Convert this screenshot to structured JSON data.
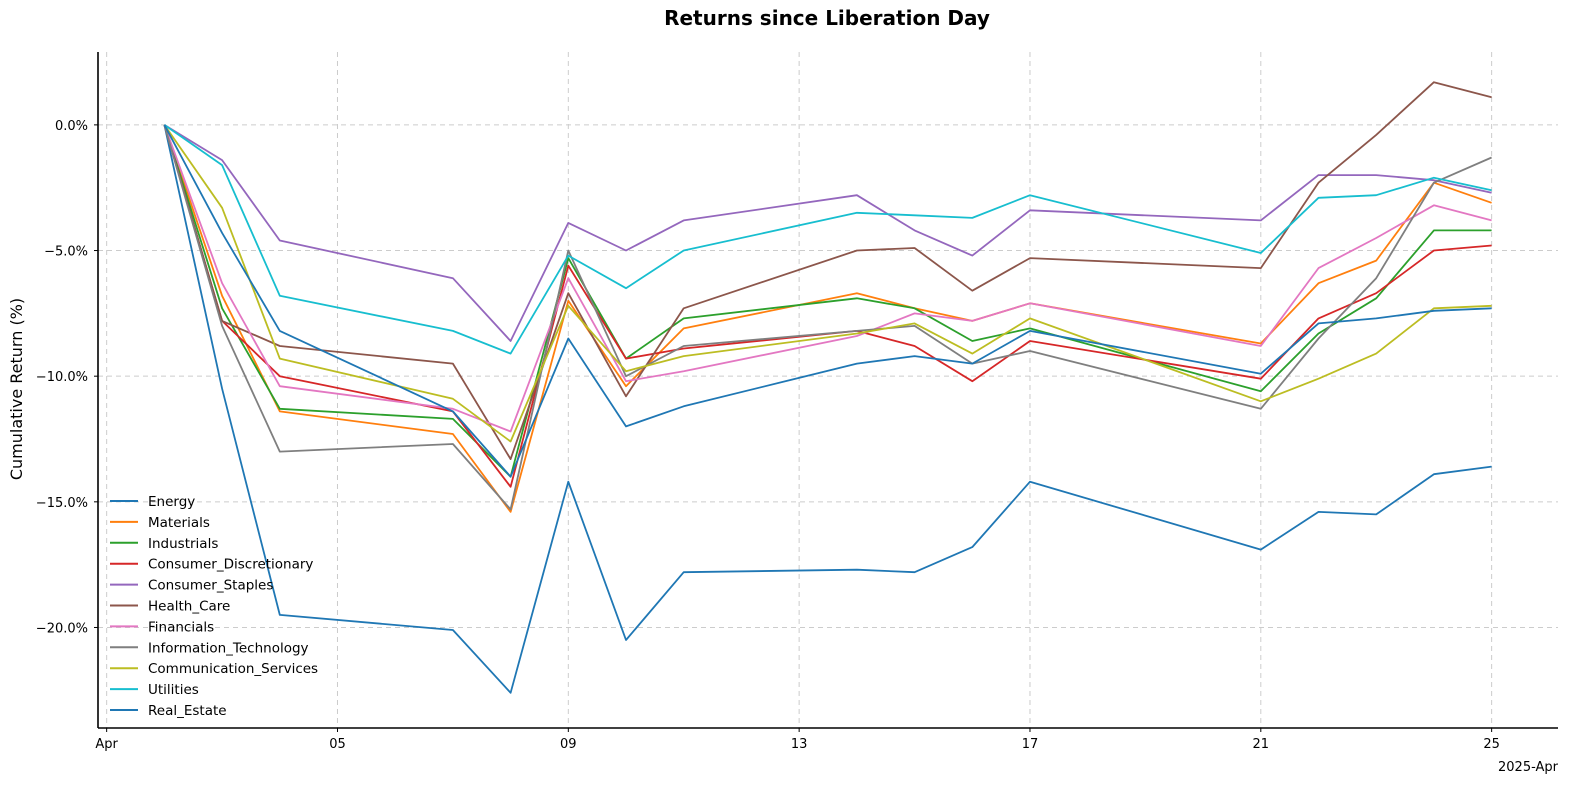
{
  "chart_data": {
    "type": "line",
    "title": "Returns since Liberation Day",
    "xlabel": "",
    "ylabel": "Cumulative Return (%)",
    "x_axis_corner_label": "2025-Apr",
    "x_ticks": [
      {
        "day": 1,
        "label": "Apr"
      },
      {
        "day": 5,
        "label": "05"
      },
      {
        "day": 9,
        "label": "09"
      },
      {
        "day": 13,
        "label": "13"
      },
      {
        "day": 17,
        "label": "17"
      },
      {
        "day": 21,
        "label": "21"
      },
      {
        "day": 25,
        "label": "25"
      }
    ],
    "y_ticks": [
      {
        "value": 0,
        "label": "0.0%"
      },
      {
        "value": -5,
        "label": "−5.0%"
      },
      {
        "value": -10,
        "label": "−10.0%"
      },
      {
        "value": -15,
        "label": "−15.0%"
      },
      {
        "value": -20,
        "label": "−20.0%"
      }
    ],
    "xlim": [
      0.85,
      26.15
    ],
    "ylim": [
      -24,
      2.9
    ],
    "grid": true,
    "legend_position": "lower-left",
    "x": [
      2,
      3,
      4,
      7,
      8,
      9,
      10,
      11,
      14,
      15,
      16,
      17,
      21,
      22,
      23,
      24,
      25
    ],
    "series": [
      {
        "name": "Energy",
        "color": "#1f77b4",
        "values": [
          0,
          -10.5,
          -19.5,
          -20.1,
          -22.6,
          -14.2,
          -20.5,
          -17.8,
          -17.7,
          -17.8,
          -16.8,
          -14.2,
          -16.9,
          -15.4,
          -15.5,
          -13.9,
          -13.6
        ]
      },
      {
        "name": "Materials",
        "color": "#ff7f0e",
        "values": [
          0,
          -6.8,
          -11.4,
          -12.3,
          -15.4,
          -7.0,
          -10.4,
          -8.1,
          -6.7,
          -7.3,
          -7.8,
          -7.1,
          -8.7,
          -6.3,
          -5.4,
          -2.3,
          -3.1
        ]
      },
      {
        "name": "Industrials",
        "color": "#2ca02c",
        "values": [
          0,
          -7.3,
          -11.3,
          -11.7,
          -14.0,
          -5.3,
          -9.3,
          -7.7,
          -6.9,
          -7.3,
          -8.6,
          -8.1,
          -10.6,
          -8.3,
          -6.9,
          -4.2,
          -4.2
        ]
      },
      {
        "name": "Consumer_Discretionary",
        "color": "#d62728",
        "values": [
          0,
          -7.8,
          -10.0,
          -11.4,
          -14.4,
          -5.6,
          -9.3,
          -8.9,
          -8.2,
          -8.8,
          -10.2,
          -8.6,
          -10.1,
          -7.7,
          -6.7,
          -5.0,
          -4.8
        ]
      },
      {
        "name": "Consumer_Staples",
        "color": "#9467bd",
        "values": [
          0,
          -1.4,
          -4.6,
          -6.1,
          -8.6,
          -3.9,
          -5.0,
          -3.8,
          -2.8,
          -4.2,
          -5.2,
          -3.4,
          -3.8,
          -2.0,
          -2.0,
          -2.2,
          -2.7
        ]
      },
      {
        "name": "Health_Care",
        "color": "#8c564b",
        "values": [
          0,
          -7.8,
          -8.8,
          -9.5,
          -13.3,
          -6.7,
          -10.8,
          -7.3,
          -5.0,
          -4.9,
          -6.6,
          -5.3,
          -5.7,
          -2.3,
          -0.4,
          1.7,
          1.1
        ]
      },
      {
        "name": "Financials",
        "color": "#e377c2",
        "values": [
          0,
          -6.3,
          -10.4,
          -11.3,
          -12.2,
          -6.1,
          -10.2,
          -9.8,
          -8.4,
          -7.5,
          -7.8,
          -7.1,
          -8.8,
          -5.7,
          -4.5,
          -3.2,
          -3.8
        ]
      },
      {
        "name": "Information_Technology",
        "color": "#7f7f7f",
        "values": [
          0,
          -8.0,
          -13.0,
          -12.7,
          -15.3,
          -5.0,
          -10.0,
          -8.8,
          -8.2,
          -8.0,
          -9.5,
          -9.0,
          -11.3,
          -8.5,
          -6.1,
          -2.3,
          -1.3
        ]
      },
      {
        "name": "Communication_Services",
        "color": "#bcbd22",
        "values": [
          0,
          -3.3,
          -9.3,
          -10.9,
          -12.6,
          -7.2,
          -9.8,
          -9.2,
          -8.3,
          -7.9,
          -9.1,
          -7.7,
          -11.0,
          -10.1,
          -9.1,
          -7.3,
          -7.2
        ]
      },
      {
        "name": "Utilities",
        "color": "#17becf",
        "values": [
          0,
          -1.6,
          -6.8,
          -8.2,
          -9.1,
          -5.2,
          -6.5,
          -5.0,
          -3.5,
          -3.6,
          -3.7,
          -2.8,
          -5.1,
          -2.9,
          -2.8,
          -2.1,
          -2.6
        ]
      },
      {
        "name": "Real_Estate",
        "color": "#1f77b4",
        "values": [
          0,
          -4.3,
          -8.2,
          -11.4,
          -14.0,
          -8.5,
          -12.0,
          -11.2,
          -9.5,
          -9.2,
          -9.5,
          -8.2,
          -9.9,
          -7.9,
          -7.7,
          -7.4,
          -7.3
        ]
      }
    ]
  }
}
